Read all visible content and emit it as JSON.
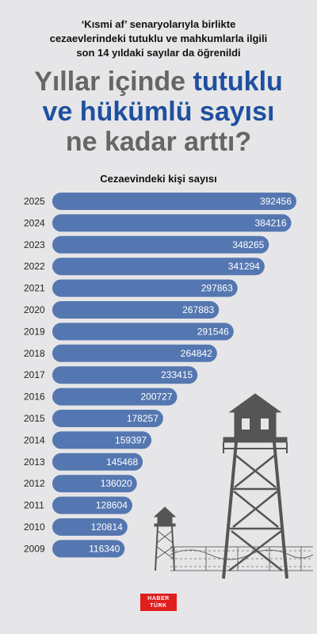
{
  "header": {
    "subtitle_line1": "‘Kısmi af’ senaryolarıyla birlikte",
    "subtitle_line2": "cezaevlerindeki tutuklu ve mahkumlarla ilgili",
    "subtitle_line3": "son 14 yıldaki sayılar da öğrenildi",
    "headline_part1": "Yıllar içinde ",
    "headline_highlight1": "tutuklu",
    "headline_highlight2": "ve hükümlü sayısı",
    "headline_line3": "ne kadar arttı?"
  },
  "chart_data": {
    "type": "bar",
    "orientation": "horizontal",
    "title": "Cezaevindeki kişi sayısı",
    "categories": [
      "2025",
      "2024",
      "2023",
      "2022",
      "2021",
      "2020",
      "2019",
      "2018",
      "2017",
      "2016",
      "2015",
      "2014",
      "2013",
      "2012",
      "2011",
      "2010",
      "2009"
    ],
    "values": [
      392456,
      384216,
      348265,
      341294,
      297863,
      267883,
      291546,
      264842,
      233415,
      200727,
      178257,
      159397,
      145468,
      136020,
      128604,
      120814,
      116340
    ],
    "bar_color": "#5577b1",
    "title_color": "#111111",
    "data_labels": true
  },
  "logo": {
    "line1": "HABER",
    "line2": "TÜRK",
    "color": "#e01e1e"
  },
  "colors": {
    "background": "#e6e6e8",
    "headline_gray": "#666666",
    "headline_blue": "#1f4fa0"
  }
}
